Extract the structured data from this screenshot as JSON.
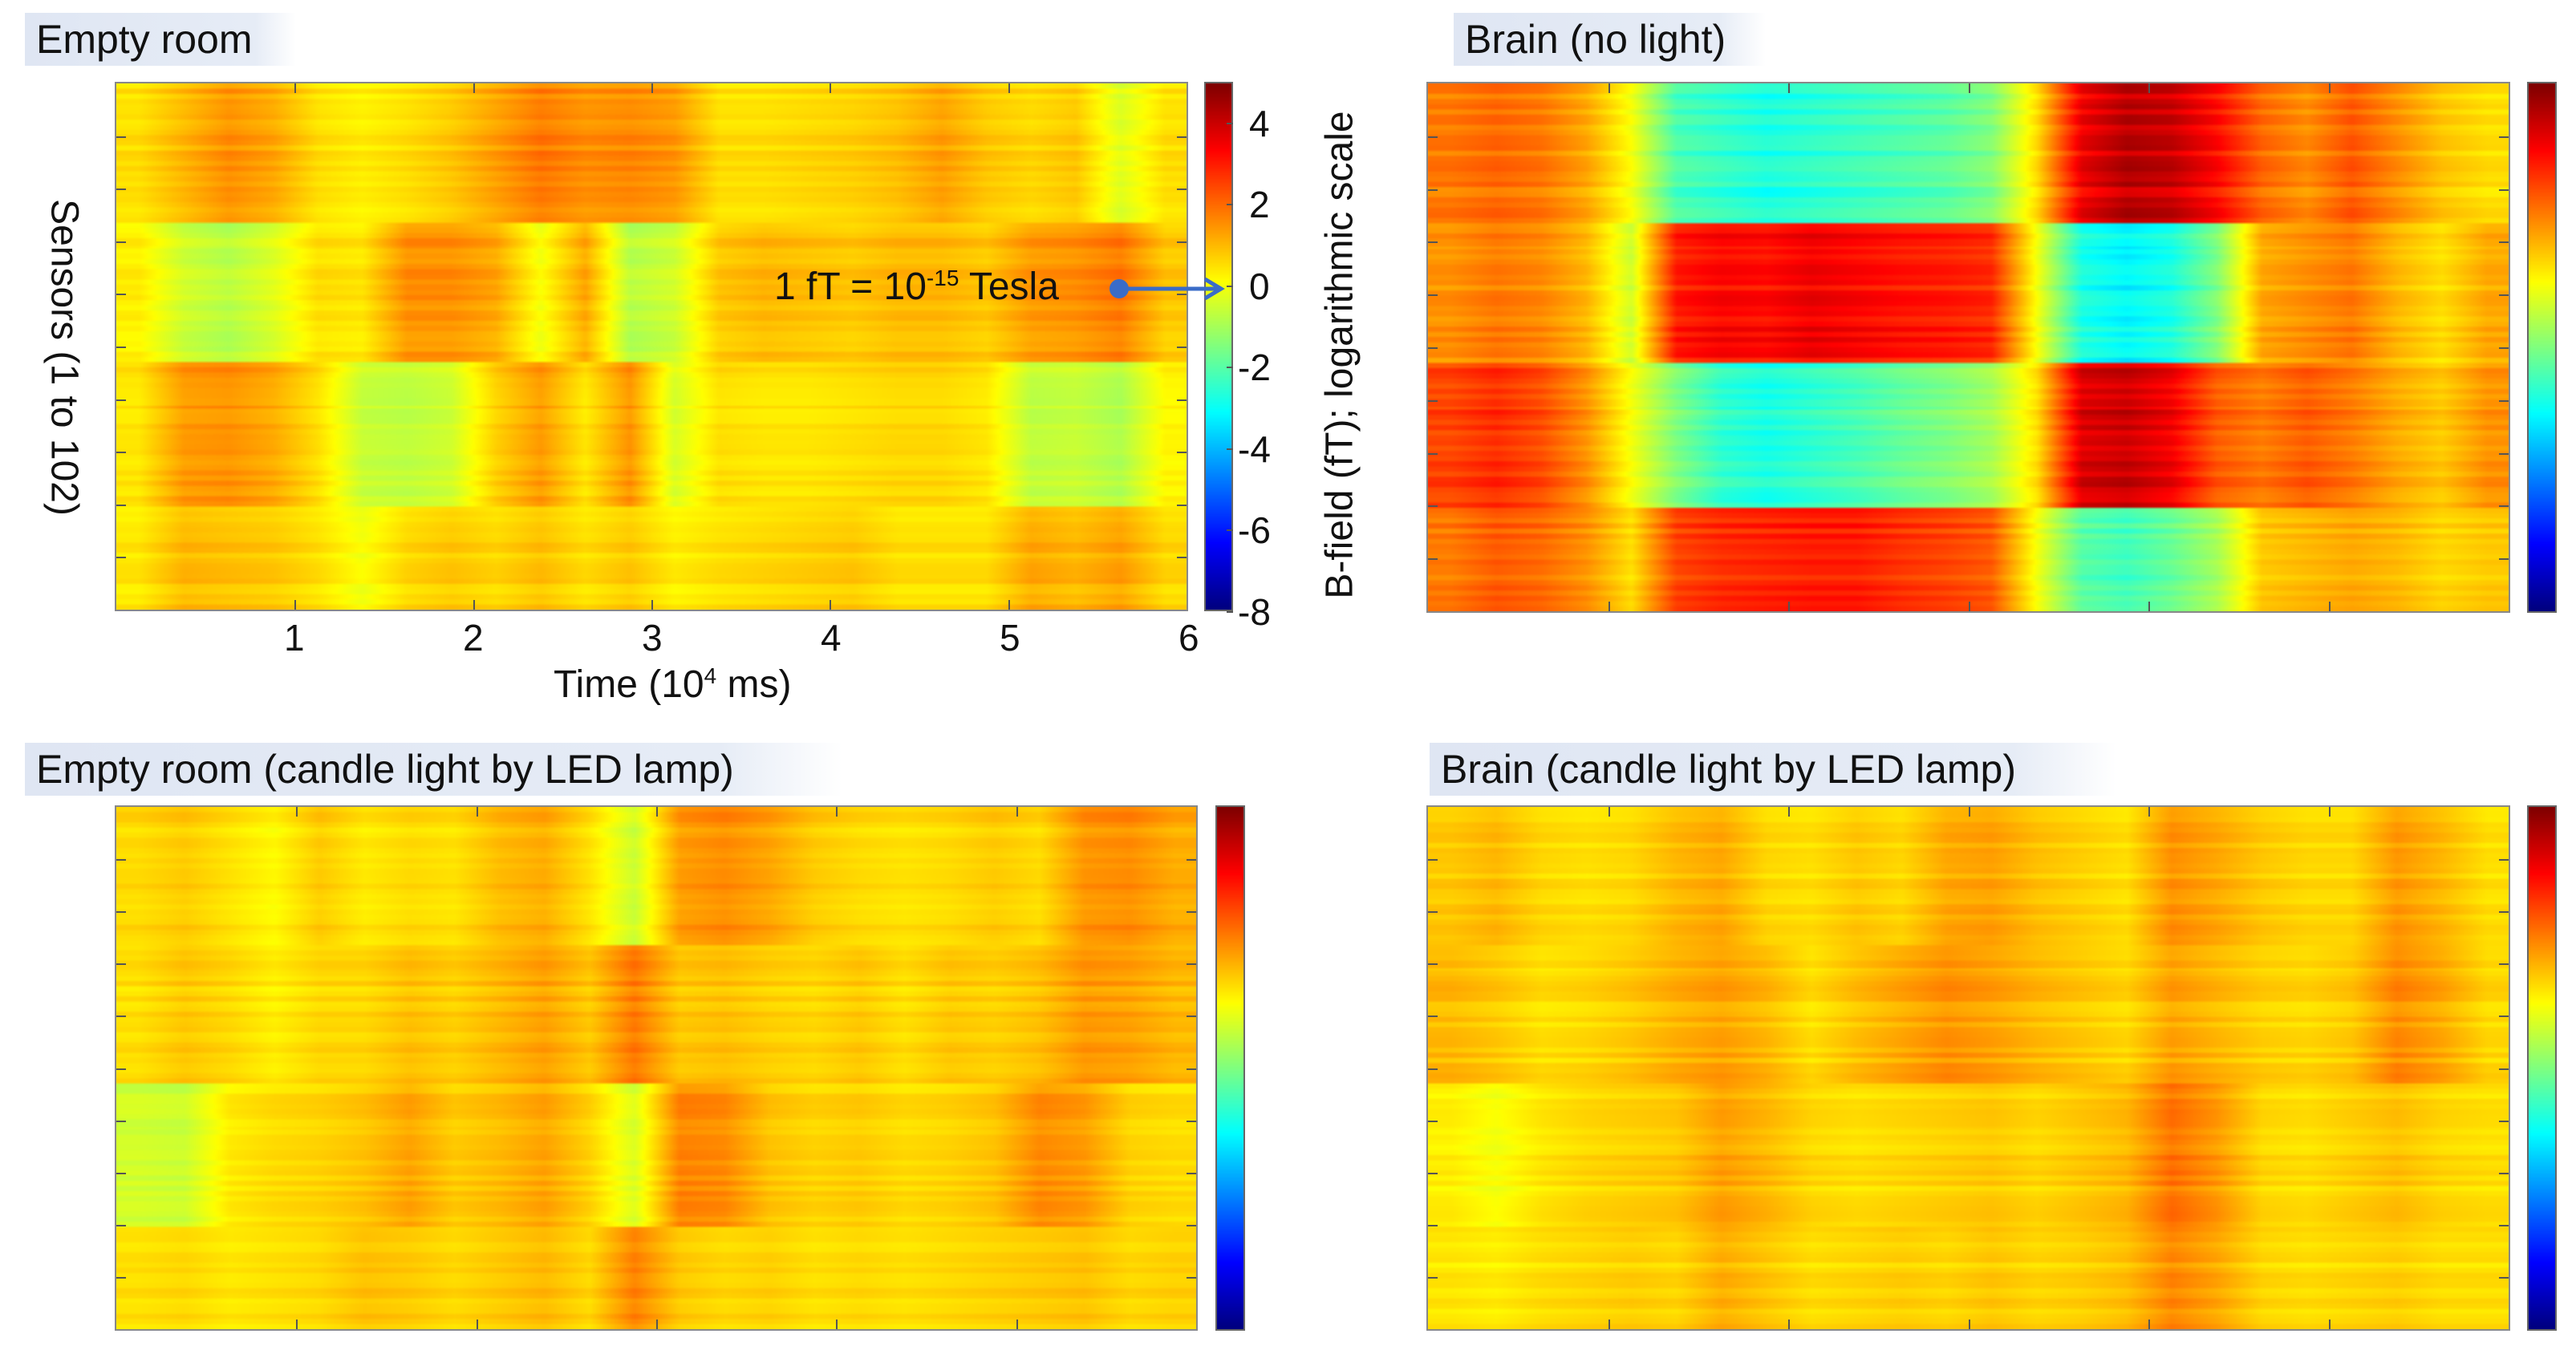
{
  "chart_data": [
    {
      "type": "heatmap",
      "title": "Empty room",
      "xlabel": "Time (10^4 ms)",
      "xlabel_parts": {
        "pre": "Time (10",
        "sup": "4",
        "post": " ms)"
      },
      "ylabel": "Sensors (1 to 102)",
      "colorbar_label": "B-field (fT); logarithmic scale",
      "xlim": [
        0,
        6
      ],
      "ylim": [
        1,
        102
      ],
      "clim": [
        -8,
        5
      ],
      "colormap": "jet",
      "x_ticks": [
        "1",
        "2",
        "3",
        "4",
        "5",
        "6"
      ],
      "colorbar_ticks": [
        "4",
        "2",
        "0",
        "-2",
        "-4",
        "-6",
        "-8"
      ],
      "annotation": {
        "pre": "1 fT = 10",
        "sup": "-15",
        "post": " Tesla",
        "points_to": 0
      },
      "row_bands": [
        "sensors 1-27",
        "sensors 28-54",
        "sensors 55-82",
        "sensors 83-102"
      ],
      "time_bin_width": 0.25,
      "values": [
        [
          0.5,
          1.0,
          1.5,
          1.2,
          0.5,
          0.3,
          0.5,
          0.8,
          1.3,
          1.8,
          1.5,
          1.6,
          1.4,
          0.5,
          0.5,
          0.6,
          0.7,
          0.9,
          1.3,
          0.8,
          0.6,
          0.8,
          -0.3,
          0.5
        ],
        [
          0.3,
          -0.5,
          -0.8,
          -0.3,
          0.5,
          0.4,
          1.5,
          1.5,
          1.2,
          0.0,
          1.2,
          -0.8,
          -0.5,
          0.8,
          1.0,
          0.9,
          0.8,
          1.0,
          1.0,
          0.8,
          1.4,
          1.5,
          1.8,
          0.8
        ],
        [
          0.5,
          1.5,
          1.6,
          1.3,
          0.6,
          -0.5,
          -0.6,
          -0.4,
          0.8,
          1.5,
          0.5,
          1.6,
          -0.3,
          0.6,
          0.5,
          0.5,
          0.6,
          0.7,
          0.7,
          0.5,
          -0.6,
          -0.5,
          -0.8,
          0.3
        ],
        [
          0.4,
          1.0,
          0.9,
          0.8,
          0.5,
          0.0,
          0.6,
          0.8,
          0.6,
          0.9,
          0.5,
          0.8,
          0.3,
          0.5,
          0.6,
          0.7,
          0.8,
          0.5,
          0.5,
          0.5,
          1.2,
          1.0,
          1.3,
          0.6
        ]
      ]
    },
    {
      "type": "heatmap",
      "title": "Brain (no light)",
      "xlim": [
        0,
        6
      ],
      "ylim": [
        1,
        102
      ],
      "clim": [
        -8,
        5
      ],
      "colormap": "jet",
      "time_bin_width": 0.25,
      "values": [
        [
          1.8,
          2.0,
          1.8,
          1.2,
          0.0,
          -2.2,
          -2.5,
          -2.8,
          -2.6,
          -2.4,
          -2.2,
          -2.0,
          -1.5,
          0.5,
          3.5,
          4.2,
          4.0,
          3.2,
          2.0,
          1.5,
          2.2,
          1.5,
          0.8,
          0.5
        ],
        [
          1.5,
          1.8,
          1.6,
          1.0,
          -0.5,
          3.0,
          3.3,
          3.2,
          3.5,
          3.3,
          3.1,
          3.0,
          2.8,
          0.0,
          -2.8,
          -3.2,
          -2.8,
          -1.5,
          1.2,
          1.5,
          1.8,
          1.0,
          0.5,
          1.2
        ],
        [
          2.5,
          2.8,
          2.4,
          1.5,
          0.0,
          -1.5,
          -2.5,
          -2.8,
          -2.5,
          -2.2,
          -1.8,
          -1.5,
          -1.0,
          0.5,
          3.8,
          4.0,
          3.5,
          2.2,
          1.8,
          2.2,
          1.8,
          1.2,
          0.8,
          1.5
        ],
        [
          1.8,
          2.2,
          2.0,
          1.5,
          0.5,
          2.5,
          2.8,
          2.9,
          3.0,
          3.0,
          2.7,
          2.5,
          2.2,
          0.0,
          -2.0,
          -2.3,
          -1.8,
          -1.0,
          0.8,
          1.0,
          1.2,
          1.0,
          0.6,
          0.8
        ]
      ]
    },
    {
      "type": "heatmap",
      "title": "Empty room (candle light by LED lamp)",
      "xlim": [
        0,
        6
      ],
      "ylim": [
        1,
        102
      ],
      "clim": [
        -8,
        5
      ],
      "colormap": "jet",
      "time_bin_width": 0.25,
      "values": [
        [
          0.6,
          0.8,
          0.5,
          0.2,
          0.8,
          0.4,
          0.6,
          0.5,
          1.0,
          1.2,
          0.5,
          -0.5,
          1.4,
          1.6,
          1.3,
          0.8,
          0.6,
          0.5,
          0.6,
          0.8,
          0.6,
          1.5,
          1.6,
          1.2
        ],
        [
          0.5,
          0.8,
          0.6,
          0.3,
          0.6,
          0.6,
          0.9,
          0.7,
          1.0,
          1.3,
          0.8,
          1.8,
          0.8,
          0.9,
          0.7,
          0.6,
          0.8,
          0.5,
          0.8,
          0.7,
          0.9,
          1.4,
          1.3,
          1.0
        ],
        [
          -0.5,
          -0.6,
          0.3,
          0.5,
          0.6,
          0.8,
          1.2,
          0.7,
          0.9,
          1.2,
          0.6,
          -0.4,
          1.6,
          1.5,
          0.8,
          0.6,
          0.7,
          0.5,
          0.6,
          0.8,
          1.5,
          1.3,
          0.6,
          0.5
        ],
        [
          0.5,
          0.6,
          0.4,
          0.5,
          0.6,
          0.9,
          0.8,
          0.6,
          0.8,
          1.0,
          0.6,
          1.7,
          0.8,
          0.6,
          0.7,
          0.5,
          0.6,
          0.5,
          0.6,
          0.7,
          0.8,
          0.9,
          0.6,
          0.7
        ]
      ]
    },
    {
      "type": "heatmap",
      "title": "Brain (candle light by LED lamp)",
      "xlim": [
        0,
        6
      ],
      "ylim": [
        1,
        102
      ],
      "clim": [
        -8,
        5
      ],
      "colormap": "jet",
      "time_bin_width": 0.25,
      "values": [
        [
          0.8,
          1.0,
          0.6,
          0.5,
          0.6,
          1.0,
          1.2,
          0.6,
          0.5,
          0.8,
          0.6,
          1.2,
          1.3,
          0.9,
          0.7,
          0.5,
          1.5,
          1.2,
          0.8,
          0.6,
          0.6,
          1.4,
          1.0,
          0.5
        ],
        [
          1.0,
          0.8,
          0.5,
          0.6,
          0.8,
          1.1,
          1.3,
          1.0,
          0.5,
          0.9,
          1.2,
          1.5,
          1.3,
          1.0,
          0.8,
          0.6,
          1.3,
          1.0,
          0.7,
          0.6,
          0.8,
          1.6,
          1.2,
          0.6
        ],
        [
          0.3,
          0.0,
          0.4,
          0.6,
          0.7,
          0.8,
          1.3,
          1.0,
          0.6,
          0.5,
          0.6,
          0.7,
          0.8,
          0.6,
          0.8,
          1.0,
          1.9,
          1.4,
          0.6,
          0.5,
          0.7,
          0.9,
          0.6,
          0.5
        ],
        [
          0.4,
          0.3,
          0.5,
          0.6,
          0.7,
          0.6,
          1.1,
          0.8,
          0.5,
          0.6,
          0.7,
          0.6,
          0.8,
          0.6,
          0.7,
          0.9,
          1.6,
          1.2,
          0.6,
          0.5,
          0.6,
          0.7,
          0.5,
          0.5
        ]
      ]
    }
  ]
}
